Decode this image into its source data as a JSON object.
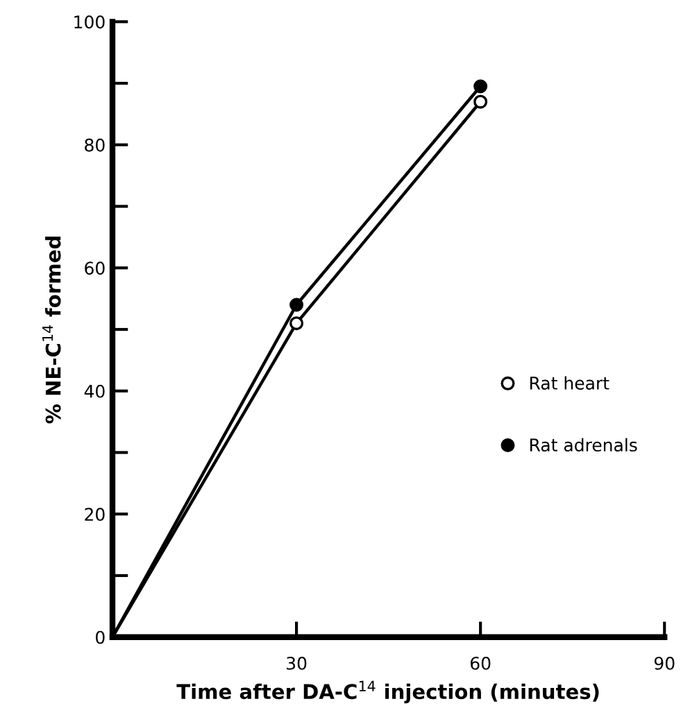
{
  "chart_data": {
    "type": "line",
    "xlabel": "Time after DA-C$^{14}$ injection (minutes)",
    "ylabel": "% NE-C$^{14}$ formed",
    "x": [
      0,
      30,
      60
    ],
    "series": [
      {
        "name": "Rat heart",
        "color": "#000000",
        "values": [
          0,
          51,
          87
        ]
      },
      {
        "name": "Rat adrenals",
        "color": "#000000",
        "values": [
          0,
          54,
          89.5
        ]
      }
    ],
    "xlim": [
      0,
      90
    ],
    "xticks": [
      30,
      60,
      90
    ],
    "ylim": [
      0,
      100
    ],
    "yticks": [
      0,
      {
        "value": 10,
        "label": null
      },
      20,
      {
        "value": 30,
        "label": null
      },
      40,
      {
        "value": 50,
        "label": null
      },
      60,
      {
        "value": 70,
        "label": null
      },
      80,
      {
        "value": 90,
        "label": null
      },
      100
    ],
    "marker": "circle",
    "legend": "right",
    "grid": false
  }
}
